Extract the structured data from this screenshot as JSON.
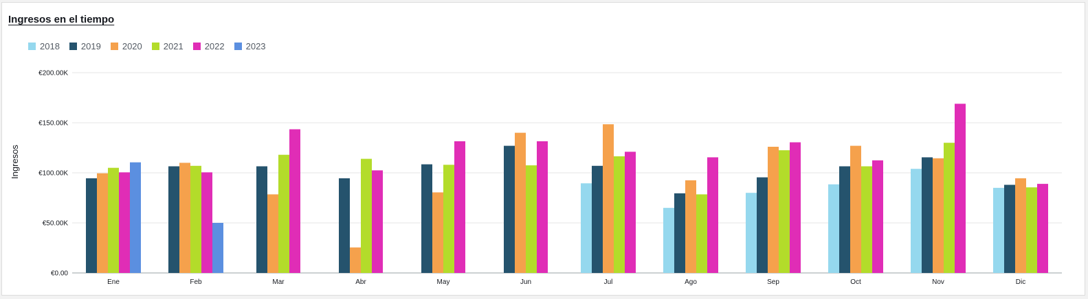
{
  "chart_data": {
    "type": "bar",
    "title": "Ingresos en el tiempo",
    "xlabel": "",
    "ylabel": "Ingresos",
    "ylim": [
      0,
      200000
    ],
    "yticks": [
      {
        "value": 0,
        "label": "€0.00"
      },
      {
        "value": 50000,
        "label": "€50.00K"
      },
      {
        "value": 100000,
        "label": "€100.00K"
      },
      {
        "value": 150000,
        "label": "€150.00K"
      },
      {
        "value": 200000,
        "label": "€200.00K"
      }
    ],
    "grid": true,
    "legend_position": "top-left",
    "categories": [
      "Ene",
      "Feb",
      "Mar",
      "Abr",
      "May",
      "Jun",
      "Jul",
      "Ago",
      "Sep",
      "Oct",
      "Nov",
      "Dic"
    ],
    "series": [
      {
        "name": "2018",
        "color": "#95d8ee",
        "values": [
          null,
          null,
          null,
          null,
          null,
          null,
          89500,
          65000,
          80000,
          88500,
          104000,
          85000
        ]
      },
      {
        "name": "2019",
        "color": "#25536d",
        "values": [
          94500,
          106500,
          106500,
          94500,
          108500,
          127000,
          107000,
          79500,
          95500,
          106500,
          115500,
          88000
        ]
      },
      {
        "name": "2020",
        "color": "#f5a14c",
        "values": [
          99500,
          110000,
          78500,
          25500,
          80500,
          140000,
          148500,
          92500,
          126000,
          127000,
          114500,
          94500
        ]
      },
      {
        "name": "2021",
        "color": "#b3dc2a",
        "values": [
          105000,
          107000,
          118000,
          114000,
          108000,
          107500,
          116500,
          78500,
          122500,
          106500,
          130000,
          85500
        ]
      },
      {
        "name": "2022",
        "color": "#e02db6",
        "values": [
          100500,
          100500,
          143500,
          102500,
          131500,
          131500,
          121000,
          115500,
          130500,
          112500,
          169000,
          89000
        ]
      },
      {
        "name": "2023",
        "color": "#5b8fe0",
        "values": [
          110500,
          50000,
          null,
          null,
          null,
          null,
          null,
          null,
          null,
          null,
          null,
          null
        ]
      }
    ]
  }
}
